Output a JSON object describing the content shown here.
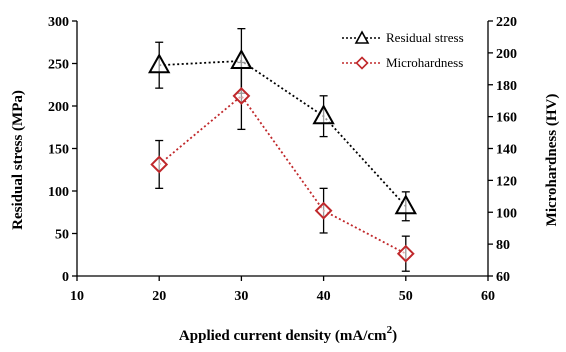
{
  "chart_data": {
    "type": "line",
    "x": [
      20,
      30,
      40,
      50
    ],
    "xlabel": "Applied current density (mA/cm",
    "xlabel_sup": "2",
    "xlabel_close": ")",
    "xlim": [
      10,
      60
    ],
    "xticks": [
      10,
      20,
      30,
      40,
      50,
      60
    ],
    "ylabel": "Residual stress (MPa)",
    "ylim": [
      0,
      300
    ],
    "yticks": [
      0,
      50,
      100,
      150,
      200,
      250,
      300
    ],
    "y2label": "Microhardness (HV)",
    "y2lim": [
      60,
      220
    ],
    "y2ticks": [
      60,
      80,
      100,
      120,
      140,
      160,
      180,
      200,
      220
    ],
    "grid": false,
    "legend": "top-right",
    "series": [
      {
        "name": "Residual stress",
        "axis": "left",
        "marker": "triangle",
        "color": "#000000",
        "values": [
          248,
          253,
          188,
          82
        ],
        "error": [
          27,
          38,
          24,
          17
        ]
      },
      {
        "name": "Microhardness",
        "axis": "right",
        "marker": "diamond",
        "color": "#c0282b",
        "values": [
          130,
          173,
          101,
          74
        ],
        "error": [
          15,
          21,
          14,
          11
        ]
      }
    ]
  }
}
